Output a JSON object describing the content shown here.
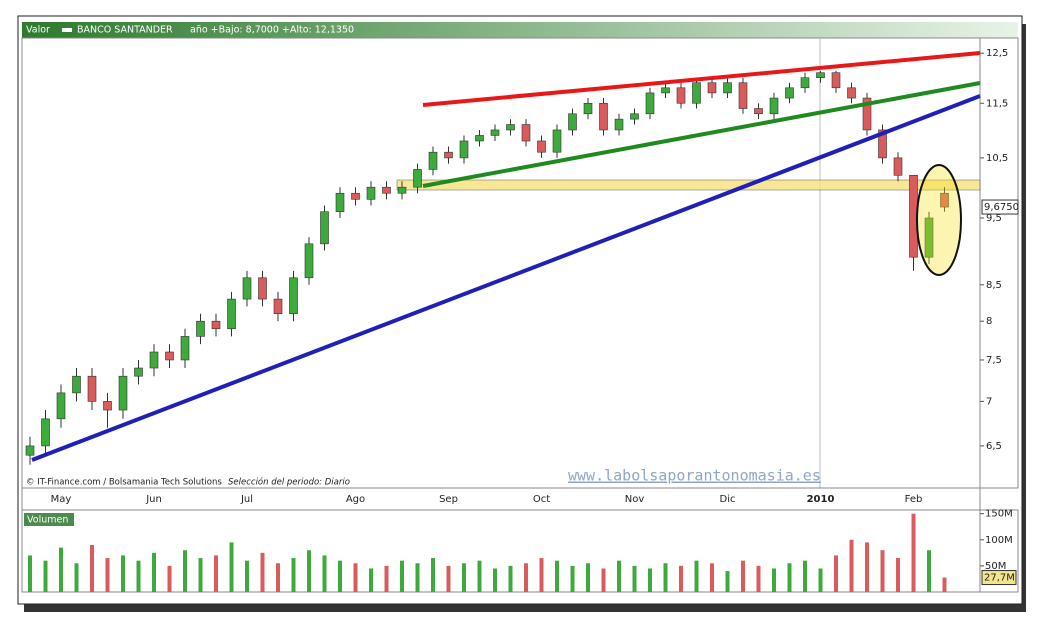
{
  "header": {
    "label": "Valor",
    "symbol": "BANCO SANTANDER",
    "range": "año +Bajo: 8,7000 +Alto: 12,1350"
  },
  "footer": {
    "source": "© IT-Finance.com / Bolsamania Tech Solutions",
    "period": "Selección del periodo: Diario",
    "watermark": "www.labolsaporantonomasia.es"
  },
  "chart_data": [
    {
      "type": "candlestick",
      "log_scale": true,
      "up_color": "#3cab3c",
      "down_color": "#d95b5b",
      "categories": [
        null,
        null,
        "May",
        null,
        null,
        null,
        null,
        null,
        "Jun",
        null,
        null,
        null,
        null,
        null,
        "Jul",
        null,
        null,
        null,
        null,
        null,
        null,
        "Ago",
        null,
        null,
        null,
        null,
        null,
        "Sep",
        null,
        null,
        null,
        null,
        null,
        "Oct",
        null,
        null,
        null,
        null,
        null,
        "Nov",
        null,
        null,
        null,
        null,
        null,
        "Dic",
        null,
        null,
        null,
        null,
        null,
        "2010",
        null,
        null,
        null,
        null,
        null,
        "Feb",
        null,
        null
      ],
      "open": [
        6.4,
        6.5,
        6.8,
        7.1,
        7.3,
        7.0,
        6.9,
        7.3,
        7.4,
        7.6,
        7.5,
        7.8,
        8.0,
        7.9,
        8.3,
        8.6,
        8.3,
        8.1,
        8.6,
        9.1,
        9.6,
        9.9,
        9.8,
        10.0,
        9.9,
        10.0,
        10.3,
        10.6,
        10.5,
        10.8,
        10.9,
        11.0,
        11.1,
        10.8,
        10.6,
        11.0,
        11.3,
        11.5,
        11.0,
        11.2,
        11.3,
        11.7,
        11.8,
        11.5,
        11.9,
        11.7,
        11.9,
        11.4,
        11.3,
        11.6,
        11.8,
        12.0,
        12.1,
        11.8,
        11.6,
        11.0,
        10.5,
        10.2,
        8.9,
        9.9
      ],
      "high": [
        6.6,
        6.9,
        7.2,
        7.4,
        7.4,
        7.1,
        7.4,
        7.5,
        7.7,
        7.7,
        7.9,
        8.1,
        8.1,
        8.4,
        8.7,
        8.7,
        8.4,
        8.7,
        9.2,
        9.7,
        10.0,
        10.0,
        10.1,
        10.1,
        10.1,
        10.4,
        10.7,
        10.7,
        10.9,
        11.0,
        11.1,
        11.2,
        11.2,
        10.9,
        11.1,
        11.4,
        11.6,
        11.6,
        11.3,
        11.4,
        11.8,
        11.9,
        11.9,
        12.0,
        12.0,
        12.0,
        12.0,
        11.5,
        11.7,
        11.9,
        12.1,
        12.135,
        12.135,
        11.9,
        11.7,
        11.1,
        10.6,
        10.2,
        9.6,
        10.0
      ],
      "low": [
        6.3,
        6.4,
        6.7,
        7.0,
        6.9,
        6.7,
        6.8,
        7.2,
        7.3,
        7.4,
        7.4,
        7.7,
        7.8,
        7.8,
        8.2,
        8.2,
        8.0,
        8.0,
        8.5,
        9.0,
        9.5,
        9.7,
        9.7,
        9.8,
        9.8,
        9.9,
        10.2,
        10.4,
        10.4,
        10.7,
        10.8,
        10.9,
        10.7,
        10.5,
        10.5,
        10.9,
        11.2,
        10.9,
        10.9,
        11.1,
        11.2,
        11.6,
        11.4,
        11.4,
        11.6,
        11.6,
        11.3,
        11.2,
        11.2,
        11.5,
        11.7,
        11.9,
        11.7,
        11.5,
        10.9,
        10.4,
        10.1,
        8.7,
        8.8,
        9.6
      ],
      "close": [
        6.5,
        6.8,
        7.1,
        7.3,
        7.0,
        6.9,
        7.3,
        7.4,
        7.6,
        7.5,
        7.8,
        8.0,
        7.9,
        8.3,
        8.6,
        8.3,
        8.1,
        8.6,
        9.1,
        9.6,
        9.9,
        9.8,
        10.0,
        9.9,
        10.0,
        10.3,
        10.6,
        10.5,
        10.8,
        10.9,
        11.0,
        11.1,
        10.8,
        10.6,
        11.0,
        11.3,
        11.5,
        11.0,
        11.2,
        11.3,
        11.7,
        11.8,
        11.5,
        11.9,
        11.7,
        11.9,
        11.4,
        11.3,
        11.6,
        11.8,
        12.0,
        12.1,
        11.8,
        11.6,
        11.0,
        10.5,
        10.2,
        8.9,
        9.5,
        9.675
      ],
      "ylim": [
        6.06,
        12.82
      ],
      "yticks": [
        {
          "value": 12.5,
          "label": "12,5"
        },
        {
          "value": 11.5,
          "label": "11,5"
        },
        {
          "value": 10.5,
          "label": "10,5"
        },
        {
          "value": 9.5,
          "label": "9,5"
        },
        {
          "value": 8.5,
          "label": "8,5"
        },
        8,
        {
          "value": 7.5,
          "label": "7,5"
        },
        7,
        {
          "value": 6.5,
          "label": "6,5"
        }
      ],
      "last": {
        "value": 9.675,
        "label": "9,6750"
      }
    },
    {
      "type": "volume",
      "title": "Volumen",
      "values": [
        70,
        60,
        85,
        55,
        90,
        65,
        70,
        60,
        75,
        50,
        80,
        65,
        70,
        95,
        60,
        75,
        55,
        65,
        80,
        70,
        60,
        55,
        45,
        50,
        60,
        55,
        65,
        50,
        55,
        60,
        45,
        50,
        55,
        65,
        60,
        50,
        55,
        45,
        60,
        50,
        45,
        55,
        50,
        60,
        55,
        40,
        60,
        50,
        45,
        55,
        60,
        45,
        70,
        100,
        95,
        80,
        65,
        150,
        80,
        27.7
      ],
      "ylim": [
        0,
        157
      ],
      "yticks": [
        {
          "value": 150,
          "label": "150M"
        },
        {
          "value": 100,
          "label": "100M"
        },
        {
          "value": 50,
          "label": "50M"
        }
      ],
      "last": {
        "value": 27.7,
        "label": "27,7M"
      }
    }
  ]
}
